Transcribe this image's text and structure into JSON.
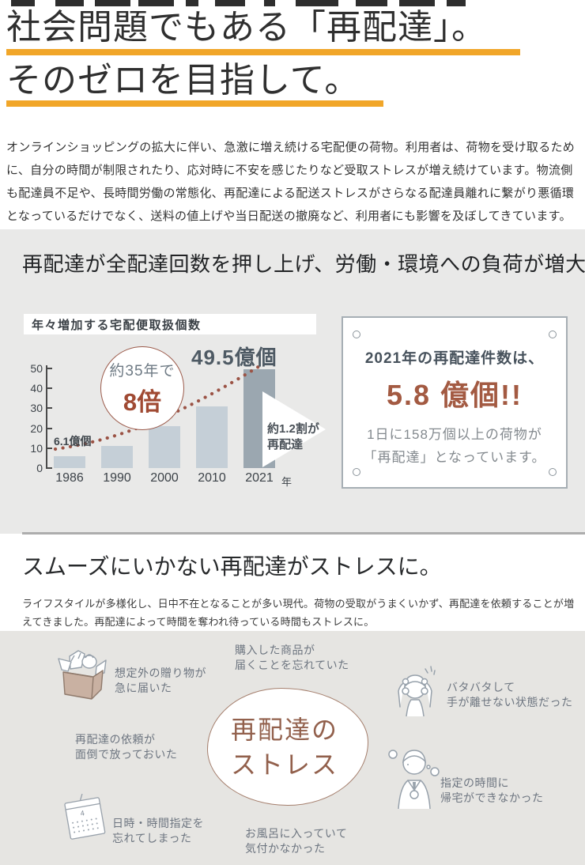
{
  "hero": {
    "title1": "社会問題でもある「再配達」。",
    "title2": "そのゼロを目指して。",
    "intro": "オンラインショッピングの拡大に伴い、急激に増え続ける宅配便の荷物。利用者は、荷物を受け取るために、自分の時間が制限されたり、応対時に不安を感じたりなど受取ストレスが増え続けています。物流側も配達員不足や、長時間労働の常態化、再配達による配送ストレスがさらなる配達員離れに繋がり悪循環となっているだけでなく、送料の値上げや当日配送の撤廃など、利用者にも影響を及ぼしてきています。"
  },
  "load": {
    "heading": "再配達が全配達回数を押し上げ、労働・環境への負荷が増大",
    "bubble_top": "約35年で",
    "bubble_big": "8倍",
    "label_first": "6.1億個",
    "label_peak": "49.5億個",
    "arrow_line1": "約1.2割が",
    "arrow_line2": "再配達",
    "board": {
      "line1": "2021年の再配達件数は、",
      "highlight": "5.8 億個!!",
      "line3": "1日に158万個以上の荷物が",
      "line4": "「再配達」となっています。"
    }
  },
  "stress": {
    "heading": "スムーズにいかない再配達がストレスに。",
    "body": "ライフスタイルが多様化し、日中不在となることが多い現代。荷物の受取がうまくいかず、再配達を依頼することが増えてきました。再配達によって時間を奪われ待っている時間もストレスに。",
    "blob1": "再配達の",
    "blob2": "ストレス",
    "reasons": [
      {
        "icon": "gift-box-icon",
        "line1": "想定外の贈り物が",
        "line2": "急に届いた"
      },
      {
        "icon": null,
        "line1": "購入した商品が",
        "line2": "届くことを忘れていた"
      },
      {
        "icon": null,
        "line1": "再配達の依頼が",
        "line2": "面倒で放っておいた"
      },
      {
        "icon": "calendar-icon",
        "line1": "日時・時間指定を",
        "line2": "忘れてしまった"
      },
      {
        "icon": null,
        "line1": "お風呂に入っていて",
        "line2": "気付かなかった"
      },
      {
        "icon": "frazzled-person-icon",
        "line1": "バタバタして",
        "line2": "手が離せない状態だった"
      },
      {
        "icon": "worried-person-icon",
        "line1": "指定の時間に",
        "line2": "帰宅ができなかった"
      }
    ]
  },
  "chart_data": {
    "type": "bar",
    "title": "年々増加する宅配便取扱個数",
    "categories": [
      "1986",
      "1990",
      "2000",
      "2010",
      "2021"
    ],
    "values": [
      6.1,
      11,
      21,
      31,
      49.5
    ],
    "unit": "億個",
    "x_suffix": "年",
    "ylim": [
      0,
      50
    ],
    "yticks": [
      0,
      10,
      20,
      30,
      40,
      50
    ],
    "grid": false,
    "annotations": [
      "6.1億個 (1986年)",
      "49.5億個 (2021年)",
      "約35年で8倍",
      "約1.2割が再配達"
    ],
    "bar_color": "#C5CFD7",
    "bar_color_highlight": "#9BA7B0",
    "dotted_trend_color": "#9B5345"
  },
  "colors": {
    "accent_yellow": "#F1A629",
    "section_gray": "#E9E9E8",
    "bottom_gray": "#E6E5E2",
    "brown_accent": "#A35A42"
  }
}
